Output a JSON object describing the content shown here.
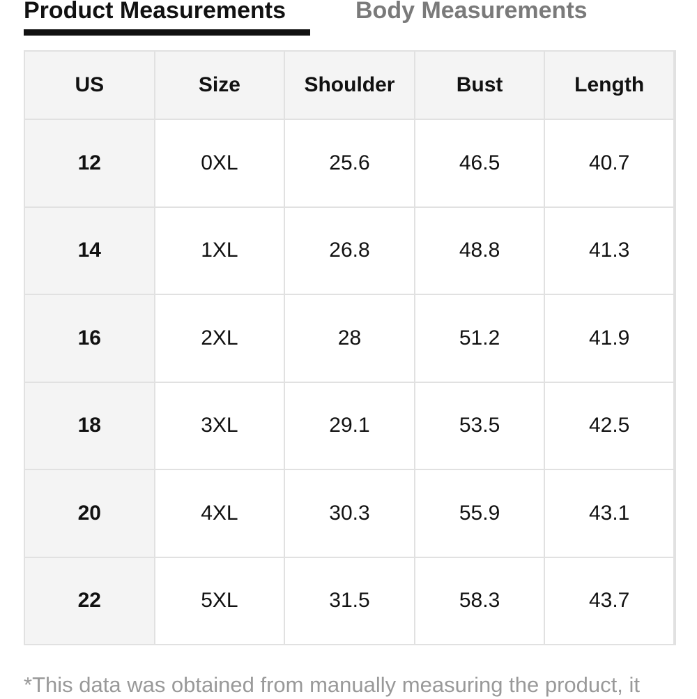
{
  "tabs": [
    {
      "label": "Product Measurements",
      "active": true
    },
    {
      "label": "Body Measurements",
      "active": false
    }
  ],
  "table": {
    "headers": [
      "US",
      "Size",
      "Shoulder",
      "Bust",
      "Length"
    ],
    "rows": [
      [
        "12",
        "0XL",
        "25.6",
        "46.5",
        "40.7"
      ],
      [
        "14",
        "1XL",
        "26.8",
        "48.8",
        "41.3"
      ],
      [
        "16",
        "2XL",
        "28",
        "51.2",
        "41.9"
      ],
      [
        "18",
        "3XL",
        "29.1",
        "53.5",
        "42.5"
      ],
      [
        "20",
        "4XL",
        "30.3",
        "55.9",
        "43.1"
      ],
      [
        "22",
        "5XL",
        "31.5",
        "58.3",
        "43.7"
      ]
    ]
  },
  "note": "*This data was obtained from manually measuring the product, it",
  "colors": {
    "active_tab": "#111111",
    "inactive_tab": "#7a7a7a",
    "header_bg": "#f4f4f4",
    "border": "#e1e1e1",
    "note_text": "#999999"
  }
}
